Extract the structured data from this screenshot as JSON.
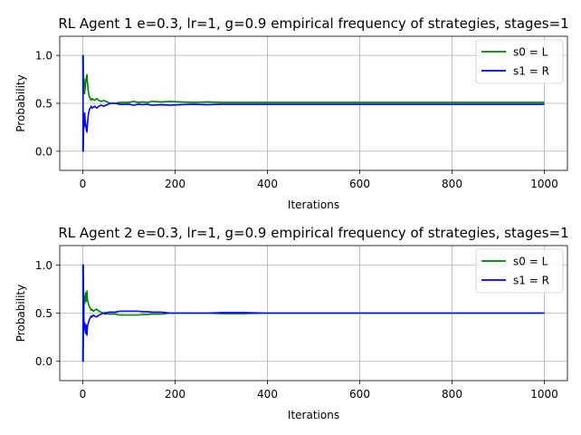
{
  "chart_data": [
    {
      "type": "line",
      "title": "RL Agent 1 e=0.3, lr=1, g=0.9 empirical frequency of strategies, stages=1",
      "xlabel": "Iterations",
      "ylabel": "Probability",
      "xlim": [
        -50,
        1050
      ],
      "ylim": [
        -0.2,
        1.2
      ],
      "xticks": [
        0,
        200,
        400,
        600,
        800,
        1000
      ],
      "yticks": [
        0.0,
        0.5,
        1.0
      ],
      "grid": true,
      "legend_position": "top-right",
      "series": [
        {
          "name": "s0 = L",
          "color": "#008000",
          "x": [
            0,
            1,
            2,
            3,
            4,
            5,
            6,
            7,
            8,
            9,
            10,
            12,
            14,
            16,
            18,
            20,
            23,
            26,
            30,
            35,
            40,
            45,
            50,
            55,
            60,
            70,
            80,
            90,
            100,
            110,
            120,
            130,
            140,
            150,
            170,
            190,
            210,
            240,
            270,
            300,
            350,
            400,
            500,
            600,
            700,
            800,
            900,
            1000
          ],
          "y": [
            0.0,
            1.0,
            0.67,
            0.75,
            0.6,
            0.67,
            0.71,
            0.75,
            0.78,
            0.8,
            0.72,
            0.62,
            0.57,
            0.55,
            0.53,
            0.55,
            0.54,
            0.53,
            0.55,
            0.53,
            0.52,
            0.53,
            0.52,
            0.51,
            0.5,
            0.5,
            0.51,
            0.51,
            0.51,
            0.52,
            0.51,
            0.515,
            0.51,
            0.52,
            0.515,
            0.52,
            0.515,
            0.51,
            0.515,
            0.51,
            0.51,
            0.51,
            0.51,
            0.51,
            0.51,
            0.51,
            0.51,
            0.51
          ]
        },
        {
          "name": "s1 = R",
          "color": "#0000ff",
          "x": [
            0,
            1,
            2,
            3,
            4,
            5,
            6,
            7,
            8,
            9,
            10,
            12,
            14,
            16,
            18,
            20,
            23,
            26,
            30,
            35,
            40,
            45,
            50,
            55,
            60,
            70,
            80,
            90,
            100,
            110,
            120,
            130,
            140,
            150,
            170,
            190,
            210,
            240,
            270,
            300,
            350,
            400,
            500,
            600,
            700,
            800,
            900,
            1000
          ],
          "y": [
            1.0,
            0.0,
            0.33,
            0.25,
            0.4,
            0.33,
            0.29,
            0.25,
            0.22,
            0.2,
            0.28,
            0.38,
            0.43,
            0.45,
            0.47,
            0.45,
            0.46,
            0.47,
            0.45,
            0.47,
            0.48,
            0.47,
            0.48,
            0.49,
            0.5,
            0.5,
            0.49,
            0.49,
            0.49,
            0.48,
            0.49,
            0.485,
            0.49,
            0.48,
            0.485,
            0.48,
            0.485,
            0.49,
            0.485,
            0.49,
            0.49,
            0.49,
            0.49,
            0.49,
            0.49,
            0.49,
            0.49,
            0.49
          ]
        }
      ]
    },
    {
      "type": "line",
      "title": "RL Agent 2 e=0.3, lr=1, g=0.9 empirical frequency of strategies, stages=1",
      "xlabel": "Iterations",
      "ylabel": "Probability",
      "xlim": [
        -50,
        1050
      ],
      "ylim": [
        -0.2,
        1.2
      ],
      "xticks": [
        0,
        200,
        400,
        600,
        800,
        1000
      ],
      "yticks": [
        0.0,
        0.5,
        1.0
      ],
      "grid": true,
      "legend_position": "top-right",
      "series": [
        {
          "name": "s0 = L",
          "color": "#008000",
          "x": [
            0,
            1,
            2,
            3,
            4,
            5,
            6,
            7,
            8,
            9,
            10,
            12,
            14,
            16,
            18,
            20,
            23,
            26,
            30,
            35,
            40,
            45,
            50,
            55,
            60,
            70,
            80,
            90,
            100,
            110,
            120,
            130,
            140,
            150,
            170,
            190,
            210,
            240,
            270,
            300,
            350,
            400,
            500,
            600,
            700,
            800,
            900,
            1000
          ],
          "y": [
            1.0,
            0.0,
            0.5,
            0.67,
            0.6,
            0.67,
            0.71,
            0.62,
            0.67,
            0.73,
            0.64,
            0.6,
            0.57,
            0.55,
            0.53,
            0.54,
            0.52,
            0.53,
            0.54,
            0.52,
            0.51,
            0.5,
            0.51,
            0.49,
            0.49,
            0.49,
            0.48,
            0.48,
            0.48,
            0.48,
            0.48,
            0.485,
            0.485,
            0.49,
            0.49,
            0.5,
            0.5,
            0.5,
            0.5,
            0.495,
            0.495,
            0.5,
            0.5,
            0.5,
            0.5,
            0.5,
            0.5,
            0.5
          ]
        },
        {
          "name": "s1 = R",
          "color": "#0000ff",
          "x": [
            0,
            1,
            2,
            3,
            4,
            5,
            6,
            7,
            8,
            9,
            10,
            12,
            14,
            16,
            18,
            20,
            23,
            26,
            30,
            35,
            40,
            45,
            50,
            55,
            60,
            70,
            80,
            90,
            100,
            110,
            120,
            130,
            140,
            150,
            170,
            190,
            210,
            240,
            270,
            300,
            350,
            400,
            500,
            600,
            700,
            800,
            900,
            1000
          ],
          "y": [
            0.0,
            1.0,
            0.5,
            0.33,
            0.4,
            0.33,
            0.29,
            0.38,
            0.33,
            0.27,
            0.36,
            0.4,
            0.43,
            0.45,
            0.47,
            0.46,
            0.48,
            0.47,
            0.46,
            0.48,
            0.49,
            0.5,
            0.49,
            0.51,
            0.51,
            0.51,
            0.52,
            0.52,
            0.52,
            0.52,
            0.52,
            0.515,
            0.515,
            0.51,
            0.51,
            0.5,
            0.5,
            0.5,
            0.5,
            0.505,
            0.505,
            0.5,
            0.5,
            0.5,
            0.5,
            0.5,
            0.5,
            0.5
          ]
        }
      ]
    }
  ]
}
